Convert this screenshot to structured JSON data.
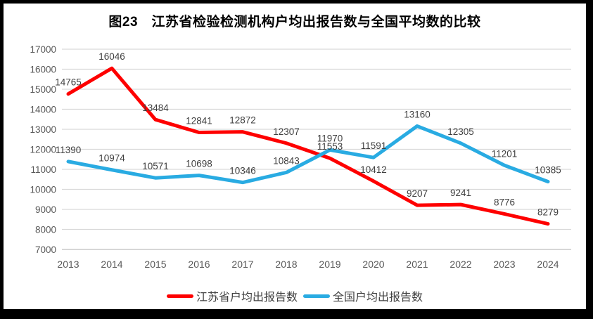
{
  "chart_data": {
    "type": "line",
    "title": "图23　江苏省检验检测机构户均出报告数与全国平均数的比较",
    "categories": [
      "2013",
      "2014",
      "2015",
      "2016",
      "2017",
      "2018",
      "2019",
      "2020",
      "2021",
      "2022",
      "2023",
      "2024"
    ],
    "series": [
      {
        "name": "江苏省户均出报告数",
        "color": "#fe0000",
        "values": [
          14765,
          16046,
          13484,
          12841,
          12872,
          12307,
          11553,
          10412,
          9207,
          9241,
          8776,
          8279
        ]
      },
      {
        "name": "全国户均出报告数",
        "color": "#29abe2",
        "values": [
          11390,
          10974,
          10571,
          10698,
          10346,
          10843,
          11970,
          11591,
          13160,
          12305,
          11201,
          10385
        ]
      }
    ],
    "ylim": [
      7000,
      17000
    ],
    "yticks": [
      7000,
      8000,
      9000,
      10000,
      11000,
      12000,
      13000,
      14000,
      15000,
      16000,
      17000
    ],
    "ytick_step": 1000,
    "grid": true,
    "data_labels": true,
    "legend_position": "bottom"
  },
  "style": {
    "frame_border_color": "#000000",
    "background": "#ffffff",
    "gridline_color": "#d9d9d9",
    "axis_line_color": "#bfbfbf",
    "tick_label_color": "#595959",
    "data_label_color": "#3f3f3f",
    "title_color": "#000000",
    "legend_text_color": "#404040"
  }
}
